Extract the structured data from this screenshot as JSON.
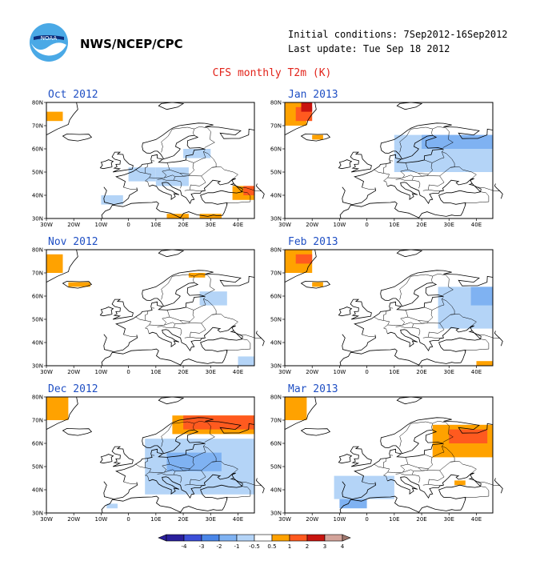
{
  "header": {
    "agency": "NWS/NCEP/CPC",
    "initial_conditions": "Initial conditions: 7Sep2012-16Sep2012",
    "last_update": "Last update: Tue Sep 18 2012",
    "main_title": "CFS monthly T2m (K)",
    "logo_text": "NOAA"
  },
  "map_axes": {
    "lat_labels": [
      "80N",
      "70N",
      "60N",
      "50N",
      "40N",
      "30N"
    ],
    "lon_labels": [
      "30W",
      "20W",
      "10W",
      "0",
      "10E",
      "20E",
      "30E",
      "40E"
    ]
  },
  "colors": {
    "-4": "#2a1f9c",
    "-3": "#3c4fd8",
    "-2": "#4a86e8",
    "-1": "#7fb2f2",
    "-0.5": "#b4d4f7",
    "0.5": "#ffffff",
    "1": "#ffa200",
    "2": "#ff5a1f",
    "3": "#c8140f",
    "4": "#d3a39a",
    "5": "#a0786e",
    "coast": "#000000",
    "title_blue": "#1f4fc4",
    "title_red": "#e2231a"
  },
  "colorbar": {
    "labels": [
      "-4",
      "-3",
      "-2",
      "-1",
      "-0.5",
      "0.5",
      "1",
      "2",
      "3",
      "4"
    ],
    "colors": [
      "#2a1f9c",
      "#3c4fd8",
      "#4a86e8",
      "#7fb2f2",
      "#b4d4f7",
      "#ffffff",
      "#ffa200",
      "#ff5a1f",
      "#c8140f",
      "#d3a39a",
      "#a0786e"
    ]
  },
  "panels": [
    {
      "title": "Oct 2012",
      "anomalies": [
        {
          "lon": -30,
          "lat": 72,
          "w": 6,
          "h": 4,
          "v": 1
        },
        {
          "lon": 0,
          "lat": 46,
          "w": 10,
          "h": 6,
          "v": -0.5
        },
        {
          "lon": 10,
          "lat": 44,
          "w": 12,
          "h": 8,
          "v": -0.5
        },
        {
          "lon": -10,
          "lat": 36,
          "w": 8,
          "h": 4,
          "v": -0.5
        },
        {
          "lon": 20,
          "lat": 56,
          "w": 10,
          "h": 4,
          "v": -0.5
        },
        {
          "lon": 38,
          "lat": 38,
          "w": 8,
          "h": 6,
          "v": 1
        },
        {
          "lon": 42,
          "lat": 40,
          "w": 4,
          "h": 4,
          "v": 2
        },
        {
          "lon": 14,
          "lat": 30,
          "w": 8,
          "h": 2,
          "v": 1
        },
        {
          "lon": 26,
          "lat": 30,
          "w": 8,
          "h": 2,
          "v": 1
        }
      ]
    },
    {
      "title": "Jan 2013",
      "anomalies": [
        {
          "lon": -30,
          "lat": 70,
          "w": 8,
          "h": 10,
          "v": 1
        },
        {
          "lon": -26,
          "lat": 72,
          "w": 6,
          "h": 6,
          "v": 2
        },
        {
          "lon": -24,
          "lat": 76,
          "w": 4,
          "h": 4,
          "v": 3
        },
        {
          "lon": -20,
          "lat": 64,
          "w": 4,
          "h": 2,
          "v": 1
        },
        {
          "lon": 10,
          "lat": 50,
          "w": 36,
          "h": 16,
          "v": -0.5
        },
        {
          "lon": 20,
          "lat": 60,
          "w": 26,
          "h": 6,
          "v": -1
        }
      ]
    },
    {
      "title": "Nov 2012",
      "anomalies": [
        {
          "lon": -30,
          "lat": 70,
          "w": 6,
          "h": 8,
          "v": 1
        },
        {
          "lon": -22,
          "lat": 64,
          "w": 8,
          "h": 2,
          "v": 1
        },
        {
          "lon": 26,
          "lat": 56,
          "w": 10,
          "h": 6,
          "v": -0.5
        },
        {
          "lon": 22,
          "lat": 68,
          "w": 6,
          "h": 2,
          "v": 1
        },
        {
          "lon": 40,
          "lat": 30,
          "w": 6,
          "h": 4,
          "v": -0.5
        }
      ]
    },
    {
      "title": "Feb 2013",
      "anomalies": [
        {
          "lon": -30,
          "lat": 70,
          "w": 10,
          "h": 10,
          "v": 1
        },
        {
          "lon": -26,
          "lat": 74,
          "w": 6,
          "h": 4,
          "v": 2
        },
        {
          "lon": -20,
          "lat": 64,
          "w": 4,
          "h": 2,
          "v": 1
        },
        {
          "lon": 26,
          "lat": 46,
          "w": 20,
          "h": 18,
          "v": -0.5
        },
        {
          "lon": 38,
          "lat": 56,
          "w": 8,
          "h": 8,
          "v": -1
        },
        {
          "lon": 40,
          "lat": 30,
          "w": 6,
          "h": 2,
          "v": 1
        }
      ]
    },
    {
      "title": "Dec 2012",
      "anomalies": [
        {
          "lon": -30,
          "lat": 70,
          "w": 8,
          "h": 10,
          "v": 1
        },
        {
          "lon": 16,
          "lat": 64,
          "w": 30,
          "h": 8,
          "v": 1
        },
        {
          "lon": 20,
          "lat": 66,
          "w": 26,
          "h": 6,
          "v": 2
        },
        {
          "lon": 6,
          "lat": 38,
          "w": 40,
          "h": 24,
          "v": -0.5
        },
        {
          "lon": 14,
          "lat": 48,
          "w": 20,
          "h": 8,
          "v": -1
        },
        {
          "lon": -8,
          "lat": 32,
          "w": 4,
          "h": 2,
          "v": -0.5
        }
      ]
    },
    {
      "title": "Mar 2013",
      "anomalies": [
        {
          "lon": -30,
          "lat": 70,
          "w": 8,
          "h": 10,
          "v": 1
        },
        {
          "lon": 24,
          "lat": 54,
          "w": 22,
          "h": 14,
          "v": 1
        },
        {
          "lon": 30,
          "lat": 60,
          "w": 14,
          "h": 6,
          "v": 2
        },
        {
          "lon": -12,
          "lat": 36,
          "w": 22,
          "h": 10,
          "v": -0.5
        },
        {
          "lon": -10,
          "lat": 32,
          "w": 10,
          "h": 4,
          "v": -1
        },
        {
          "lon": 32,
          "lat": 42,
          "w": 4,
          "h": 2,
          "v": 1
        }
      ]
    }
  ]
}
